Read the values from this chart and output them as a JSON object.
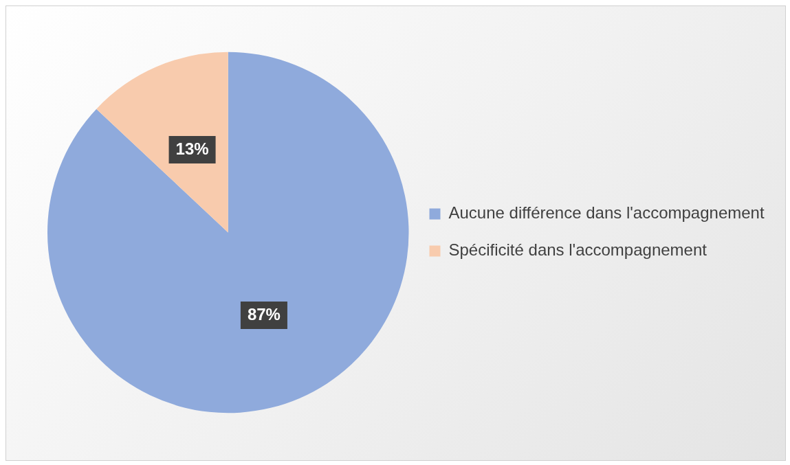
{
  "chart_data": {
    "type": "pie",
    "categories": [
      "Aucune différence dans l'accompagnement",
      "Spécificité dans l'accompagnement"
    ],
    "values": [
      87,
      13
    ],
    "colors": [
      "#8faadc",
      "#f8cbad"
    ],
    "value_labels": [
      "87%",
      "13%"
    ],
    "legend": "right"
  }
}
